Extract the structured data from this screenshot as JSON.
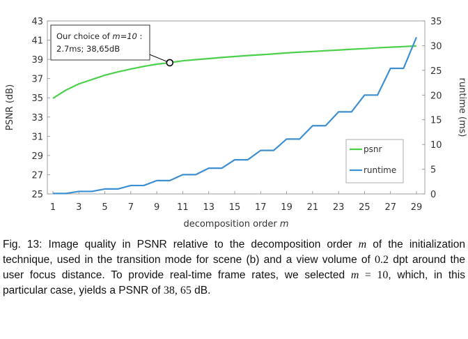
{
  "chart_data": {
    "type": "line",
    "x": [
      1,
      2,
      3,
      4,
      5,
      6,
      7,
      8,
      9,
      10,
      11,
      12,
      13,
      14,
      15,
      16,
      17,
      18,
      19,
      20,
      21,
      22,
      23,
      24,
      25,
      26,
      27,
      28,
      29
    ],
    "xticks": [
      "1",
      "3",
      "5",
      "7",
      "9",
      "11",
      "13",
      "15",
      "17",
      "19",
      "21",
      "23",
      "25",
      "27",
      "29"
    ],
    "xlabel_prefix": "decomposition order ",
    "xlabel_var": "m",
    "ylabel_left": "PSNR (dB)",
    "ylabel_right": "runtime (ms)",
    "ylim_left": [
      25,
      43
    ],
    "ylim_right": [
      0,
      35
    ],
    "yticks_left": [
      "25",
      "27",
      "29",
      "31",
      "33",
      "35",
      "37",
      "39",
      "41",
      "43"
    ],
    "yticks_right": [
      "0",
      "5",
      "10",
      "15",
      "20",
      "25",
      "30",
      "35"
    ],
    "grid": false,
    "legend_position": "lower-right",
    "series": [
      {
        "name": "psnr",
        "axis": "left",
        "color": "#4cd04c",
        "values": [
          34.95,
          35.8,
          36.45,
          36.9,
          37.35,
          37.7,
          38.0,
          38.27,
          38.5,
          38.65,
          38.85,
          38.97,
          39.08,
          39.2,
          39.3,
          39.4,
          39.48,
          39.57,
          39.67,
          39.75,
          39.82,
          39.9,
          39.97,
          40.05,
          40.12,
          40.2,
          40.27,
          40.33,
          40.4
        ]
      },
      {
        "name": "runtime",
        "axis": "right",
        "color": "#3d8fd1",
        "values": [
          0.1,
          0.1,
          0.5,
          0.5,
          1.0,
          1.0,
          1.7,
          1.7,
          2.7,
          2.7,
          3.9,
          3.9,
          5.2,
          5.2,
          6.9,
          6.9,
          8.8,
          8.8,
          11.1,
          11.1,
          13.8,
          13.8,
          16.6,
          16.6,
          20.0,
          20.0,
          25.4,
          25.4,
          31.7
        ]
      }
    ],
    "annotation": {
      "x": 10,
      "y": 38.65,
      "line1_prefix": "Our choice of ",
      "line1_var": "m=10",
      "line1_suffix": " :",
      "line2": "2.7ms; 38,65dB"
    }
  },
  "caption": {
    "p1": "Fig. 13: Image quality in PSNR relative to the decomposition order ",
    "m1": "m",
    "p2": " of the initialization technique, used in the transition mode for scene (b) and a view volume of ",
    "n1": "0.2",
    "p3": " dpt around the user focus distance. To provide real-time frame rates, we selected ",
    "m2": "m",
    "eq": " = 10",
    "p4": ", which, in this particular case, yields a PSNR of ",
    "n2": "38, 65",
    "p5": " dB."
  }
}
